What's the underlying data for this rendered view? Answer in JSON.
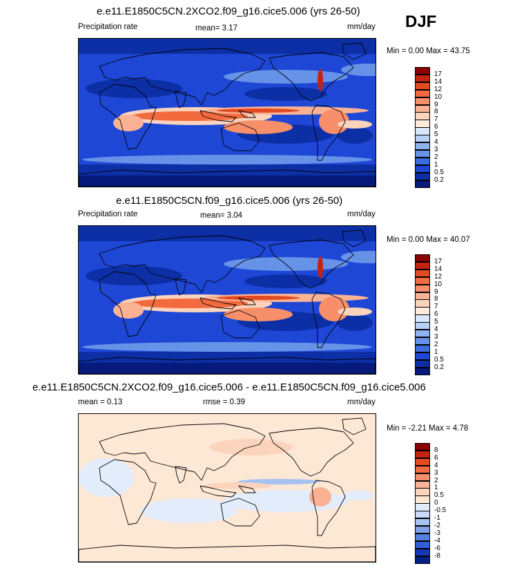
{
  "season_label": "DJF",
  "panels": [
    {
      "title": "e.e11.E1850C5CN.2XCO2.f09_g16.cice5.006 (yrs 26-50)",
      "left_label": "Precipitation rate",
      "center_label": "mean=   3.17",
      "units": "mm/day",
      "minmax": "Min =   0.00 Max =  43.75",
      "colorbar": {
        "labels": [
          "17",
          "14",
          "12",
          "10",
          "9",
          "8",
          "7",
          "6",
          "5",
          "4",
          "3",
          "2",
          "1",
          "0.5",
          "0.2"
        ],
        "colors": [
          "#8b0000",
          "#c4230f",
          "#e34a21",
          "#f26b3f",
          "#f7906a",
          "#fab294",
          "#fcd4bd",
          "#fdebdb",
          "#d9e7fb",
          "#b7d0f7",
          "#8fb3f0",
          "#6692e8",
          "#3a6cdf",
          "#1e47d6",
          "#0c2fa6",
          "#051a7a"
        ]
      },
      "style": "precip"
    },
    {
      "title": "e.e11.E1850C5CN.f09_g16.cice5.006 (yrs 26-50)",
      "left_label": "Precipitation rate",
      "center_label": "mean=   3.04",
      "units": "mm/day",
      "minmax": "Min =   0.00 Max =  40.07",
      "colorbar": {
        "labels": [
          "17",
          "14",
          "12",
          "10",
          "9",
          "8",
          "7",
          "6",
          "5",
          "4",
          "3",
          "2",
          "1",
          "0.5",
          "0.2"
        ],
        "colors": [
          "#8b0000",
          "#c4230f",
          "#e34a21",
          "#f26b3f",
          "#f7906a",
          "#fab294",
          "#fcd4bd",
          "#fdebdb",
          "#d9e7fb",
          "#b7d0f7",
          "#8fb3f0",
          "#6692e8",
          "#3a6cdf",
          "#1e47d6",
          "#0c2fa6",
          "#051a7a"
        ]
      },
      "style": "precip"
    },
    {
      "title": "e.e11.E1850C5CN.2XCO2.f09_g16.cice5.006 - e.e11.E1850C5CN.f09_g16.cice5.006",
      "left_label": "mean =   0.13",
      "center_label": "rmse =   0.39",
      "units": "mm/day",
      "minmax": "Min = -2.21 Max =  4.78",
      "colorbar": {
        "labels": [
          "8",
          "6",
          "4",
          "3",
          "2",
          "1",
          "0.5",
          "0",
          "-0.5",
          "-1",
          "-2",
          "-3",
          "-4",
          "-6",
          "-8"
        ],
        "colors": [
          "#8b0000",
          "#c4230f",
          "#e34a21",
          "#f26b3f",
          "#f7906a",
          "#fab294",
          "#fcd4bd",
          "#fde8d6",
          "#e3ecfb",
          "#c9dbf8",
          "#a6c2f2",
          "#7ea3ea",
          "#5482e2",
          "#2f5ed8",
          "#1537b8",
          "#061f86"
        ]
      },
      "style": "diff"
    }
  ]
}
